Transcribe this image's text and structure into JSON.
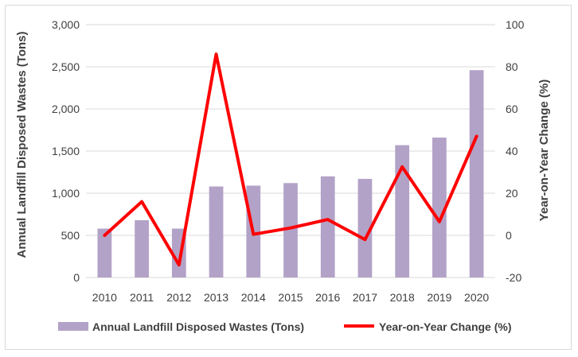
{
  "chart_data": {
    "type": "bar+line",
    "categories": [
      "2010",
      "2011",
      "2012",
      "2013",
      "2014",
      "2015",
      "2016",
      "2017",
      "2018",
      "2019",
      "2020"
    ],
    "series": [
      {
        "name": "Annual Landfill Disposed Wastes (Tons)",
        "type": "bar",
        "axis": "left",
        "color": "#b3a2c7",
        "values": [
          580,
          680,
          580,
          1080,
          1090,
          1120,
          1200,
          1170,
          1570,
          1660,
          2460
        ]
      },
      {
        "name": "Year-on-Year Change (%)",
        "type": "line",
        "axis": "right",
        "color": "#ff0000",
        "values": [
          0,
          16,
          -14,
          86,
          0.5,
          3.5,
          7.5,
          -2,
          32.5,
          6.5,
          47
        ]
      }
    ],
    "left_axis": {
      "label": "Annual Landfill Disposed Wastes (Tons)",
      "ylim": [
        0,
        3000
      ],
      "ticks": [
        0,
        500,
        1000,
        1500,
        2000,
        2500,
        3000
      ],
      "tick_labels": [
        "0",
        "500",
        "1,000",
        "1,500",
        "2,000",
        "2,500",
        "3,000"
      ]
    },
    "right_axis": {
      "label": "Year-on-Year Change (%)",
      "ylim": [
        -20,
        100
      ],
      "ticks": [
        -20,
        0,
        20,
        40,
        60,
        80,
        100
      ],
      "tick_labels": [
        "-20",
        "0",
        "20",
        "40",
        "60",
        "80",
        "100"
      ]
    },
    "gridlines": true,
    "legend_position": "bottom"
  }
}
